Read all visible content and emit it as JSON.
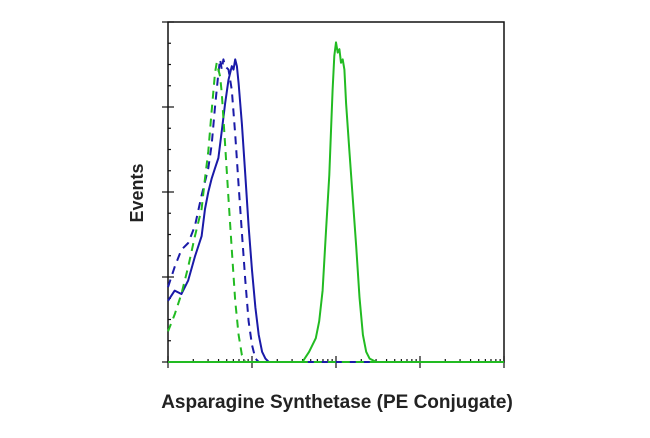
{
  "chart_data": {
    "type": "line",
    "title": "",
    "xlabel": "Asparagine Synthetase (PE Conjugate)",
    "ylabel": "Events",
    "x_scale": "log",
    "xlim": [
      0,
      100
    ],
    "ylim": [
      0,
      100
    ],
    "grid": false,
    "legend": "none",
    "series": [
      {
        "color": "#1a1aa8",
        "dash": "solid",
        "points": [
          [
            0,
            18
          ],
          [
            2,
            21
          ],
          [
            4,
            20
          ],
          [
            6,
            24
          ],
          [
            8,
            31
          ],
          [
            10,
            37
          ],
          [
            11,
            45
          ],
          [
            12,
            50
          ],
          [
            13,
            54
          ],
          [
            14,
            57
          ],
          [
            15,
            60
          ],
          [
            16,
            68
          ],
          [
            17,
            76
          ],
          [
            18,
            83
          ],
          [
            19,
            87
          ],
          [
            19.5,
            86
          ],
          [
            20,
            89
          ],
          [
            20.5,
            87
          ],
          [
            21,
            82
          ],
          [
            22,
            70
          ],
          [
            23,
            55
          ],
          [
            24,
            40
          ],
          [
            25,
            27
          ],
          [
            26,
            16
          ],
          [
            27,
            8
          ],
          [
            28,
            3
          ],
          [
            29,
            1
          ],
          [
            30,
            0
          ],
          [
            100,
            0
          ]
        ]
      },
      {
        "color": "#1a1aa8",
        "dash": "dashed",
        "points": [
          [
            0,
            22
          ],
          [
            2,
            28
          ],
          [
            4,
            33
          ],
          [
            6,
            35
          ],
          [
            8,
            40
          ],
          [
            10,
            49
          ],
          [
            12,
            57
          ],
          [
            13,
            64
          ],
          [
            14,
            75
          ],
          [
            15,
            85
          ],
          [
            15.5,
            89
          ],
          [
            16,
            86
          ],
          [
            16.5,
            89
          ],
          [
            17,
            87
          ],
          [
            18,
            86
          ],
          [
            19,
            80
          ],
          [
            20,
            67
          ],
          [
            21,
            52
          ],
          [
            22,
            38
          ],
          [
            23,
            24
          ],
          [
            24,
            12
          ],
          [
            25,
            5
          ],
          [
            26,
            1
          ],
          [
            27,
            0
          ],
          [
            100,
            0
          ]
        ]
      },
      {
        "color": "#22bb22",
        "dash": "dashed",
        "points": [
          [
            0,
            9
          ],
          [
            2,
            14
          ],
          [
            4,
            20
          ],
          [
            6,
            28
          ],
          [
            8,
            37
          ],
          [
            10,
            45
          ],
          [
            11,
            54
          ],
          [
            12,
            62
          ],
          [
            13,
            74
          ],
          [
            14,
            85
          ],
          [
            14.5,
            88
          ],
          [
            15,
            86
          ],
          [
            15.5,
            84
          ],
          [
            16,
            79
          ],
          [
            17,
            64
          ],
          [
            18,
            48
          ],
          [
            19,
            33
          ],
          [
            20,
            18
          ],
          [
            21,
            8
          ],
          [
            22,
            2
          ],
          [
            23,
            0
          ],
          [
            100,
            0
          ]
        ]
      },
      {
        "color": "#22bb22",
        "dash": "solid",
        "points": [
          [
            0,
            0
          ],
          [
            40,
            0
          ],
          [
            42,
            3
          ],
          [
            44,
            7
          ],
          [
            45,
            12
          ],
          [
            46,
            21
          ],
          [
            47,
            38
          ],
          [
            48,
            55
          ],
          [
            48.5,
            68
          ],
          [
            49,
            80
          ],
          [
            49.5,
            90
          ],
          [
            50,
            94
          ],
          [
            50.5,
            91
          ],
          [
            51,
            92
          ],
          [
            51.5,
            88
          ],
          [
            52,
            89
          ],
          [
            52.5,
            86
          ],
          [
            53,
            76
          ],
          [
            54,
            62
          ],
          [
            55,
            48
          ],
          [
            56,
            34
          ],
          [
            57,
            19
          ],
          [
            58,
            8
          ],
          [
            59,
            3
          ],
          [
            60,
            1
          ],
          [
            62,
            0
          ],
          [
            100,
            0
          ]
        ]
      }
    ]
  }
}
